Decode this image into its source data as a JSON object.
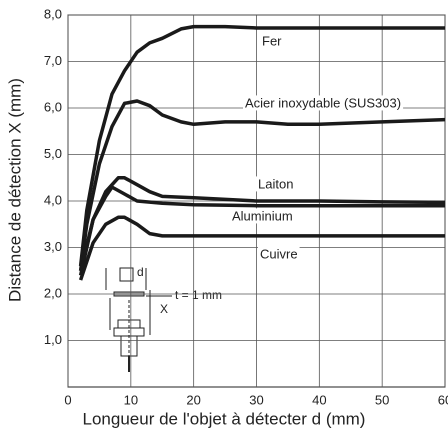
{
  "chart_data": {
    "type": "line",
    "x_label": "Longueur de l'objet à détecter d (mm)",
    "y_label": "Distance de détection X (mm)",
    "xlim": [
      0,
      60
    ],
    "xticks": [
      0,
      10,
      20,
      30,
      40,
      50,
      60
    ],
    "ylim": [
      0,
      8
    ],
    "yticks": [
      {
        "value": 1,
        "label": "1,0"
      },
      {
        "value": 2,
        "label": "2,0"
      },
      {
        "value": 3,
        "label": "3,0"
      },
      {
        "value": 4,
        "label": "4,0"
      },
      {
        "value": 5,
        "label": "5,0"
      },
      {
        "value": 6,
        "label": "6,0"
      },
      {
        "value": 7,
        "label": "7,0"
      },
      {
        "value": 8,
        "label": "8,0"
      }
    ],
    "grid": true,
    "series": [
      {
        "name": "Fer",
        "color": "#1a1a1a",
        "x": [
          2,
          3,
          5,
          7,
          9,
          11,
          13,
          15,
          18,
          20,
          25,
          30,
          40,
          50,
          60
        ],
        "values": [
          2.6,
          3.8,
          5.3,
          6.3,
          6.8,
          7.2,
          7.4,
          7.5,
          7.7,
          7.75,
          7.75,
          7.72,
          7.72,
          7.72,
          7.72
        ]
      },
      {
        "name": "Acier inoxydable (SUS303)",
        "color": "#1a1a1a",
        "x": [
          2,
          3,
          5,
          7,
          9,
          11,
          13,
          15,
          18,
          20,
          25,
          30,
          35,
          40,
          50,
          60
        ],
        "values": [
          2.5,
          3.5,
          4.8,
          5.6,
          6.1,
          6.15,
          6.05,
          5.85,
          5.7,
          5.65,
          5.7,
          5.7,
          5.65,
          5.65,
          5.7,
          5.75
        ]
      },
      {
        "name": "Laiton",
        "color": "#1a1a1a",
        "x": [
          2,
          4,
          6,
          8,
          9,
          11,
          13,
          15,
          20,
          30,
          40,
          50,
          60
        ],
        "values": [
          2.5,
          3.6,
          4.2,
          4.5,
          4.5,
          4.35,
          4.2,
          4.1,
          4.07,
          4.0,
          4.0,
          3.98,
          3.97
        ]
      },
      {
        "name": "Aluminium",
        "color": "#1a1a1a",
        "x": [
          2,
          4,
          6,
          7,
          9,
          11,
          15,
          20,
          30,
          60
        ],
        "values": [
          2.4,
          3.6,
          4.1,
          4.3,
          4.15,
          4.0,
          3.95,
          3.92,
          3.9,
          3.9
        ]
      },
      {
        "name": "Cuivre",
        "color": "#1a1a1a",
        "x": [
          2,
          4,
          6,
          8,
          9,
          11,
          13,
          15,
          20,
          60
        ],
        "values": [
          2.3,
          3.1,
          3.5,
          3.65,
          3.65,
          3.5,
          3.3,
          3.25,
          3.25,
          3.25
        ]
      }
    ],
    "annotations": [
      "d",
      "X",
      "t = 1 mm"
    ]
  }
}
